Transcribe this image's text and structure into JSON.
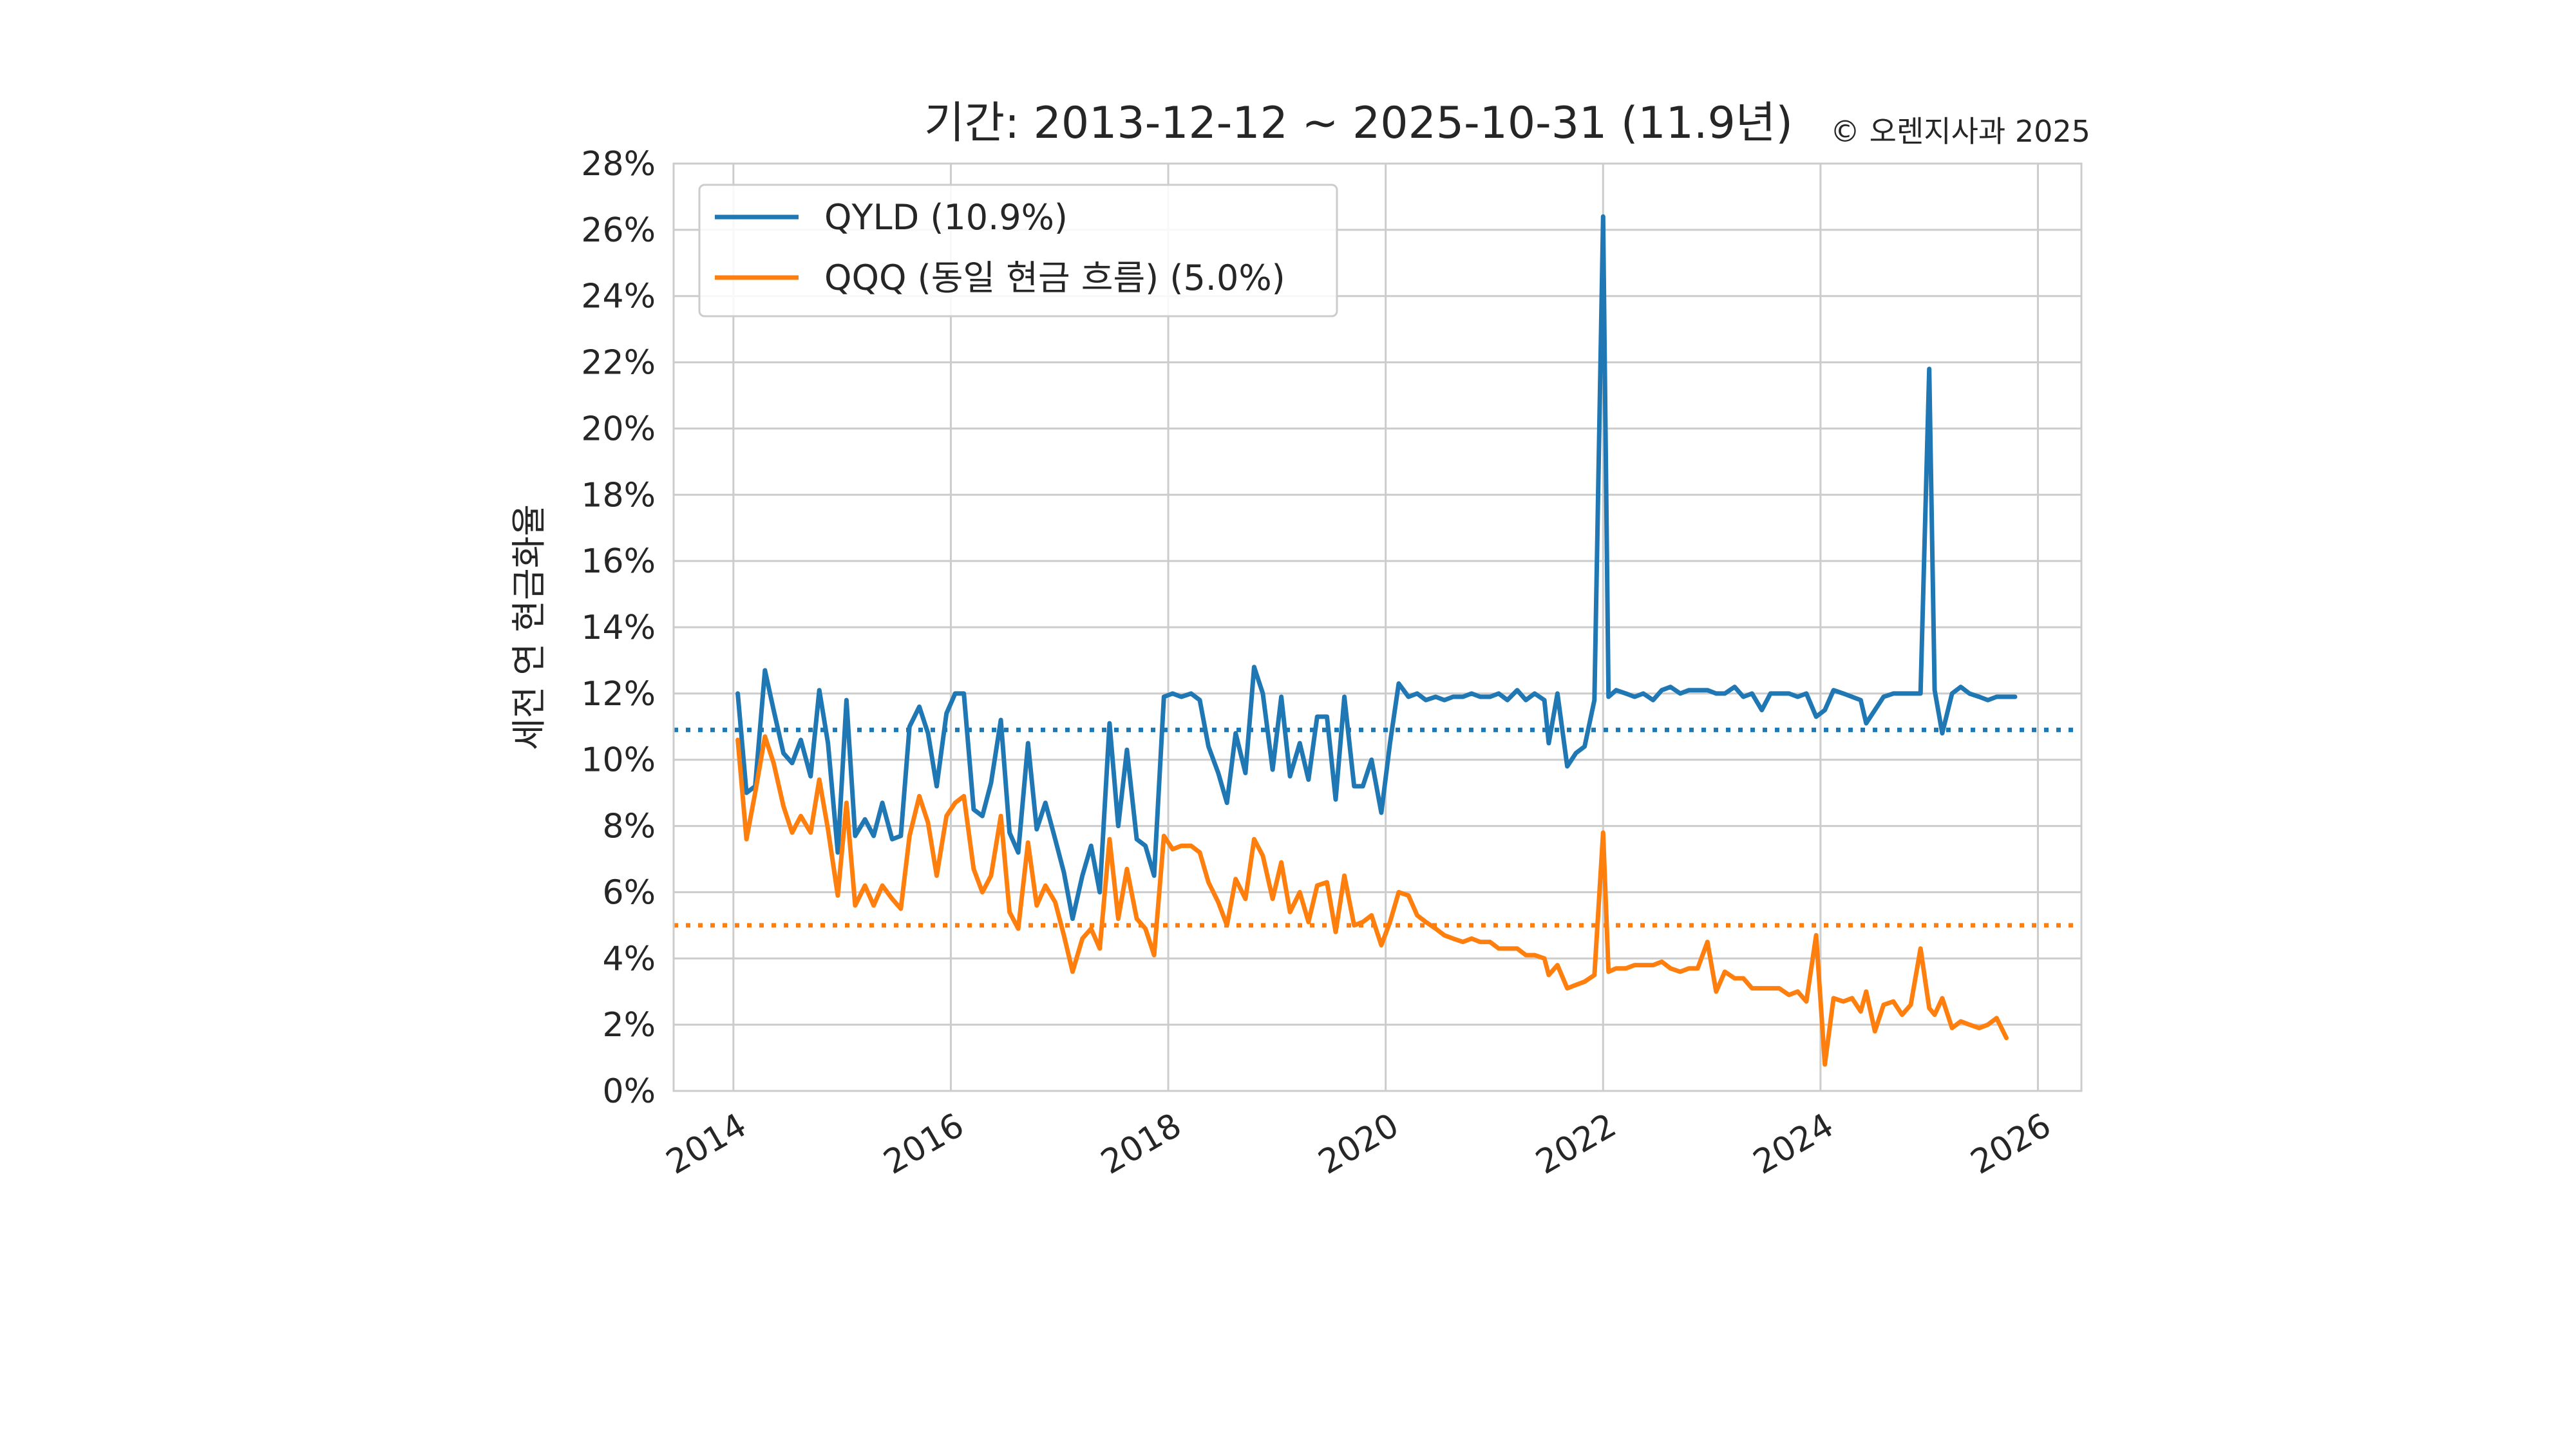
{
  "title": "기간: 2013-12-12 ~ 2025-10-31 (11.9년)",
  "copyright": "© 오렌지사과 2025",
  "ylabel": "세전 연 현금화율",
  "chart_data": {
    "type": "line",
    "title": "기간: 2013-12-12 ~ 2025-10-31 (11.9년)",
    "xlabel": "",
    "ylabel": "세전 연 현금화율",
    "xlim": [
      2013.45,
      2026.4
    ],
    "ylim": [
      0,
      28
    ],
    "grid": true,
    "legend_position": "top-left",
    "x_ticks": [
      2014,
      2016,
      2018,
      2020,
      2022,
      2024,
      2026
    ],
    "x_tick_labels": [
      "2014",
      "2016",
      "2018",
      "2020",
      "2022",
      "2024",
      "2026"
    ],
    "y_ticks": [
      0,
      2,
      4,
      6,
      8,
      10,
      12,
      14,
      16,
      18,
      20,
      22,
      24,
      26,
      28
    ],
    "y_tick_labels": [
      "0%",
      "2%",
      "4%",
      "6%",
      "8%",
      "10%",
      "12%",
      "14%",
      "16%",
      "18%",
      "20%",
      "22%",
      "24%",
      "26%",
      "28%"
    ],
    "series": [
      {
        "name": "QYLD (10.9%)",
        "color": "#1f77b4",
        "mean": 10.9,
        "points": [
          [
            2014.04,
            12.0
          ],
          [
            2014.12,
            9.0
          ],
          [
            2014.2,
            9.2
          ],
          [
            2014.29,
            12.7
          ],
          [
            2014.37,
            11.5
          ],
          [
            2014.46,
            10.2
          ],
          [
            2014.54,
            9.9
          ],
          [
            2014.62,
            10.6
          ],
          [
            2014.71,
            9.5
          ],
          [
            2014.79,
            12.1
          ],
          [
            2014.87,
            10.5
          ],
          [
            2014.96,
            7.2
          ],
          [
            2015.04,
            11.8
          ],
          [
            2015.12,
            7.7
          ],
          [
            2015.21,
            8.2
          ],
          [
            2015.29,
            7.7
          ],
          [
            2015.37,
            8.7
          ],
          [
            2015.46,
            7.6
          ],
          [
            2015.54,
            7.7
          ],
          [
            2015.62,
            11.0
          ],
          [
            2015.71,
            11.6
          ],
          [
            2015.79,
            10.8
          ],
          [
            2015.87,
            9.2
          ],
          [
            2015.96,
            11.4
          ],
          [
            2016.04,
            12.0
          ],
          [
            2016.12,
            12.0
          ],
          [
            2016.21,
            8.5
          ],
          [
            2016.29,
            8.3
          ],
          [
            2016.37,
            9.3
          ],
          [
            2016.46,
            11.2
          ],
          [
            2016.54,
            7.8
          ],
          [
            2016.62,
            7.2
          ],
          [
            2016.71,
            10.5
          ],
          [
            2016.79,
            7.9
          ],
          [
            2016.87,
            8.7
          ],
          [
            2016.96,
            7.6
          ],
          [
            2017.04,
            6.6
          ],
          [
            2017.12,
            5.2
          ],
          [
            2017.21,
            6.5
          ],
          [
            2017.29,
            7.4
          ],
          [
            2017.37,
            6.0
          ],
          [
            2017.46,
            11.1
          ],
          [
            2017.54,
            8.0
          ],
          [
            2017.62,
            10.3
          ],
          [
            2017.71,
            7.6
          ],
          [
            2017.79,
            7.4
          ],
          [
            2017.87,
            6.5
          ],
          [
            2017.96,
            11.9
          ],
          [
            2018.04,
            12.0
          ],
          [
            2018.12,
            11.9
          ],
          [
            2018.21,
            12.0
          ],
          [
            2018.29,
            11.8
          ],
          [
            2018.37,
            10.4
          ],
          [
            2018.46,
            9.6
          ],
          [
            2018.54,
            8.7
          ],
          [
            2018.62,
            10.8
          ],
          [
            2018.71,
            9.6
          ],
          [
            2018.79,
            12.8
          ],
          [
            2018.87,
            12.0
          ],
          [
            2018.96,
            9.7
          ],
          [
            2019.04,
            11.9
          ],
          [
            2019.12,
            9.5
          ],
          [
            2019.21,
            10.5
          ],
          [
            2019.29,
            9.4
          ],
          [
            2019.37,
            11.3
          ],
          [
            2019.46,
            11.3
          ],
          [
            2019.54,
            8.8
          ],
          [
            2019.62,
            11.9
          ],
          [
            2019.71,
            9.2
          ],
          [
            2019.79,
            9.2
          ],
          [
            2019.87,
            10.0
          ],
          [
            2019.96,
            8.4
          ],
          [
            2020.04,
            10.5
          ],
          [
            2020.12,
            12.3
          ],
          [
            2020.21,
            11.9
          ],
          [
            2020.29,
            12.0
          ],
          [
            2020.37,
            11.8
          ],
          [
            2020.46,
            11.9
          ],
          [
            2020.54,
            11.8
          ],
          [
            2020.62,
            11.9
          ],
          [
            2020.71,
            11.9
          ],
          [
            2020.79,
            12.0
          ],
          [
            2020.87,
            11.9
          ],
          [
            2020.96,
            11.9
          ],
          [
            2021.04,
            12.0
          ],
          [
            2021.12,
            11.8
          ],
          [
            2021.21,
            12.1
          ],
          [
            2021.29,
            11.8
          ],
          [
            2021.37,
            12.0
          ],
          [
            2021.46,
            11.8
          ],
          [
            2021.5,
            10.5
          ],
          [
            2021.58,
            12.0
          ],
          [
            2021.67,
            9.8
          ],
          [
            2021.75,
            10.2
          ],
          [
            2021.83,
            10.4
          ],
          [
            2021.92,
            11.8
          ],
          [
            2022.0,
            26.4
          ],
          [
            2022.05,
            11.9
          ],
          [
            2022.12,
            12.1
          ],
          [
            2022.21,
            12.0
          ],
          [
            2022.29,
            11.9
          ],
          [
            2022.37,
            12.0
          ],
          [
            2022.46,
            11.8
          ],
          [
            2022.54,
            12.1
          ],
          [
            2022.62,
            12.2
          ],
          [
            2022.71,
            12.0
          ],
          [
            2022.79,
            12.1
          ],
          [
            2022.87,
            12.1
          ],
          [
            2022.96,
            12.1
          ],
          [
            2023.04,
            12.0
          ],
          [
            2023.12,
            12.0
          ],
          [
            2023.21,
            12.2
          ],
          [
            2023.29,
            11.9
          ],
          [
            2023.37,
            12.0
          ],
          [
            2023.46,
            11.5
          ],
          [
            2023.54,
            12.0
          ],
          [
            2023.62,
            12.0
          ],
          [
            2023.71,
            12.0
          ],
          [
            2023.79,
            11.9
          ],
          [
            2023.87,
            12.0
          ],
          [
            2023.96,
            11.3
          ],
          [
            2024.04,
            11.5
          ],
          [
            2024.12,
            12.1
          ],
          [
            2024.21,
            12.0
          ],
          [
            2024.29,
            11.9
          ],
          [
            2024.37,
            11.8
          ],
          [
            2024.42,
            11.1
          ],
          [
            2024.5,
            11.5
          ],
          [
            2024.58,
            11.9
          ],
          [
            2024.67,
            12.0
          ],
          [
            2024.75,
            12.0
          ],
          [
            2024.83,
            12.0
          ],
          [
            2024.92,
            12.0
          ],
          [
            2025.0,
            21.8
          ],
          [
            2025.05,
            12.1
          ],
          [
            2025.12,
            10.8
          ],
          [
            2025.21,
            12.0
          ],
          [
            2025.29,
            12.2
          ],
          [
            2025.37,
            12.0
          ],
          [
            2025.46,
            11.9
          ],
          [
            2025.54,
            11.8
          ],
          [
            2025.62,
            11.9
          ],
          [
            2025.71,
            11.9
          ],
          [
            2025.79,
            11.9
          ]
        ]
      },
      {
        "name": "QQQ (동일 현금 흐름) (5.0%)",
        "color": "#ff7f0e",
        "mean": 5.0,
        "points": [
          [
            2014.04,
            10.6
          ],
          [
            2014.12,
            7.6
          ],
          [
            2014.2,
            9.0
          ],
          [
            2014.29,
            10.7
          ],
          [
            2014.37,
            9.9
          ],
          [
            2014.46,
            8.6
          ],
          [
            2014.54,
            7.8
          ],
          [
            2014.62,
            8.3
          ],
          [
            2014.71,
            7.8
          ],
          [
            2014.79,
            9.4
          ],
          [
            2014.87,
            7.9
          ],
          [
            2014.96,
            5.9
          ],
          [
            2015.04,
            8.7
          ],
          [
            2015.12,
            5.6
          ],
          [
            2015.21,
            6.2
          ],
          [
            2015.29,
            5.6
          ],
          [
            2015.37,
            6.2
          ],
          [
            2015.46,
            5.8
          ],
          [
            2015.54,
            5.5
          ],
          [
            2015.62,
            7.7
          ],
          [
            2015.71,
            8.9
          ],
          [
            2015.79,
            8.1
          ],
          [
            2015.87,
            6.5
          ],
          [
            2015.96,
            8.3
          ],
          [
            2016.04,
            8.7
          ],
          [
            2016.12,
            8.9
          ],
          [
            2016.21,
            6.7
          ],
          [
            2016.29,
            6.0
          ],
          [
            2016.37,
            6.5
          ],
          [
            2016.46,
            8.3
          ],
          [
            2016.54,
            5.4
          ],
          [
            2016.62,
            4.9
          ],
          [
            2016.71,
            7.5
          ],
          [
            2016.79,
            5.6
          ],
          [
            2016.87,
            6.2
          ],
          [
            2016.96,
            5.7
          ],
          [
            2017.04,
            4.7
          ],
          [
            2017.12,
            3.6
          ],
          [
            2017.21,
            4.6
          ],
          [
            2017.29,
            4.9
          ],
          [
            2017.37,
            4.3
          ],
          [
            2017.46,
            7.6
          ],
          [
            2017.54,
            5.2
          ],
          [
            2017.62,
            6.7
          ],
          [
            2017.71,
            5.2
          ],
          [
            2017.79,
            4.9
          ],
          [
            2017.87,
            4.1
          ],
          [
            2017.96,
            7.7
          ],
          [
            2018.04,
            7.3
          ],
          [
            2018.12,
            7.4
          ],
          [
            2018.21,
            7.4
          ],
          [
            2018.29,
            7.2
          ],
          [
            2018.37,
            6.3
          ],
          [
            2018.46,
            5.7
          ],
          [
            2018.54,
            5.0
          ],
          [
            2018.62,
            6.4
          ],
          [
            2018.71,
            5.8
          ],
          [
            2018.79,
            7.6
          ],
          [
            2018.87,
            7.1
          ],
          [
            2018.96,
            5.8
          ],
          [
            2019.04,
            6.9
          ],
          [
            2019.12,
            5.4
          ],
          [
            2019.21,
            6.0
          ],
          [
            2019.29,
            5.1
          ],
          [
            2019.37,
            6.2
          ],
          [
            2019.46,
            6.3
          ],
          [
            2019.54,
            4.8
          ],
          [
            2019.62,
            6.5
          ],
          [
            2019.71,
            5.0
          ],
          [
            2019.79,
            5.1
          ],
          [
            2019.87,
            5.3
          ],
          [
            2019.96,
            4.4
          ],
          [
            2020.04,
            5.1
          ],
          [
            2020.12,
            6.0
          ],
          [
            2020.21,
            5.9
          ],
          [
            2020.29,
            5.3
          ],
          [
            2020.37,
            5.1
          ],
          [
            2020.46,
            4.9
          ],
          [
            2020.54,
            4.7
          ],
          [
            2020.62,
            4.6
          ],
          [
            2020.71,
            4.5
          ],
          [
            2020.79,
            4.6
          ],
          [
            2020.87,
            4.5
          ],
          [
            2020.96,
            4.5
          ],
          [
            2021.04,
            4.3
          ],
          [
            2021.12,
            4.3
          ],
          [
            2021.21,
            4.3
          ],
          [
            2021.29,
            4.1
          ],
          [
            2021.37,
            4.1
          ],
          [
            2021.46,
            4.0
          ],
          [
            2021.5,
            3.5
          ],
          [
            2021.58,
            3.8
          ],
          [
            2021.67,
            3.1
          ],
          [
            2021.75,
            3.2
          ],
          [
            2021.83,
            3.3
          ],
          [
            2021.92,
            3.5
          ],
          [
            2022.0,
            7.8
          ],
          [
            2022.05,
            3.6
          ],
          [
            2022.12,
            3.7
          ],
          [
            2022.21,
            3.7
          ],
          [
            2022.29,
            3.8
          ],
          [
            2022.37,
            3.8
          ],
          [
            2022.46,
            3.8
          ],
          [
            2022.54,
            3.9
          ],
          [
            2022.62,
            3.7
          ],
          [
            2022.71,
            3.6
          ],
          [
            2022.79,
            3.7
          ],
          [
            2022.87,
            3.7
          ],
          [
            2022.96,
            4.5
          ],
          [
            2023.04,
            3.0
          ],
          [
            2023.12,
            3.6
          ],
          [
            2023.21,
            3.4
          ],
          [
            2023.29,
            3.4
          ],
          [
            2023.37,
            3.1
          ],
          [
            2023.46,
            3.1
          ],
          [
            2023.54,
            3.1
          ],
          [
            2023.62,
            3.1
          ],
          [
            2023.71,
            2.9
          ],
          [
            2023.79,
            3.0
          ],
          [
            2023.87,
            2.7
          ],
          [
            2023.96,
            4.7
          ],
          [
            2024.04,
            0.8
          ],
          [
            2024.12,
            2.8
          ],
          [
            2024.21,
            2.7
          ],
          [
            2024.29,
            2.8
          ],
          [
            2024.37,
            2.4
          ],
          [
            2024.42,
            3.0
          ],
          [
            2024.5,
            1.8
          ],
          [
            2024.58,
            2.6
          ],
          [
            2024.67,
            2.7
          ],
          [
            2024.75,
            2.3
          ],
          [
            2024.83,
            2.6
          ],
          [
            2024.92,
            4.3
          ],
          [
            2025.0,
            2.5
          ],
          [
            2025.05,
            2.3
          ],
          [
            2025.12,
            2.8
          ],
          [
            2025.21,
            1.9
          ],
          [
            2025.29,
            2.1
          ],
          [
            2025.37,
            2.0
          ],
          [
            2025.46,
            1.9
          ],
          [
            2025.54,
            2.0
          ],
          [
            2025.62,
            2.2
          ],
          [
            2025.71,
            1.6
          ]
        ]
      }
    ]
  }
}
